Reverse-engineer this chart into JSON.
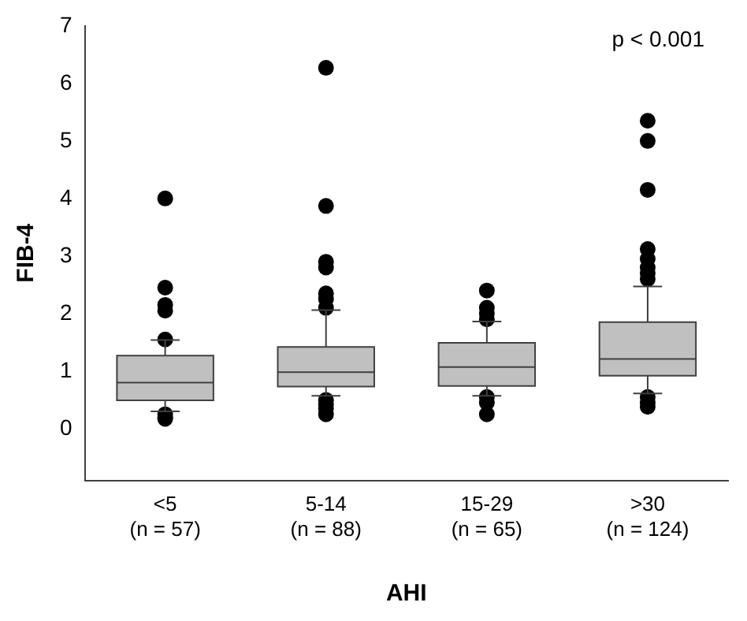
{
  "chart_data": {
    "type": "box",
    "xlabel": "AHI",
    "ylabel": "FIB-4",
    "annotations": [
      "p < 0.001"
    ],
    "categories": [
      "<5\n(n = 57)",
      "5-14\n(n = 88)",
      "15-29\n(n = 65)",
      ">30\n(n = 124)"
    ],
    "color": "#c0c0c0",
    "ylim": [
      -0.9,
      7
    ],
    "yticks": [
      0,
      1,
      2,
      3,
      4,
      5,
      6,
      7
    ],
    "boxes": [
      {
        "low": 0.3,
        "q1": 0.49,
        "median": 0.8,
        "q3": 1.27,
        "high": 1.54,
        "outliers": [
          4.0,
          2.45,
          2.15,
          2.05,
          1.55,
          0.25,
          0.2,
          0.17
        ]
      },
      {
        "low": 0.57,
        "q1": 0.73,
        "median": 0.98,
        "q3": 1.42,
        "high": 2.06,
        "outliers": [
          6.27,
          3.87,
          2.9,
          2.8,
          2.35,
          2.25,
          2.1,
          0.5,
          0.42,
          0.35,
          0.25
        ]
      },
      {
        "low": 0.57,
        "q1": 0.74,
        "median": 1.07,
        "q3": 1.49,
        "high": 1.86,
        "outliers": [
          2.4,
          2.1,
          2.0,
          1.9,
          0.55,
          0.45,
          0.25
        ]
      },
      {
        "low": 0.61,
        "q1": 0.92,
        "median": 1.21,
        "q3": 1.85,
        "high": 2.47,
        "outliers": [
          5.35,
          5.0,
          4.15,
          3.12,
          2.95,
          2.8,
          2.7,
          2.6,
          0.55,
          0.45,
          0.38
        ]
      }
    ]
  }
}
